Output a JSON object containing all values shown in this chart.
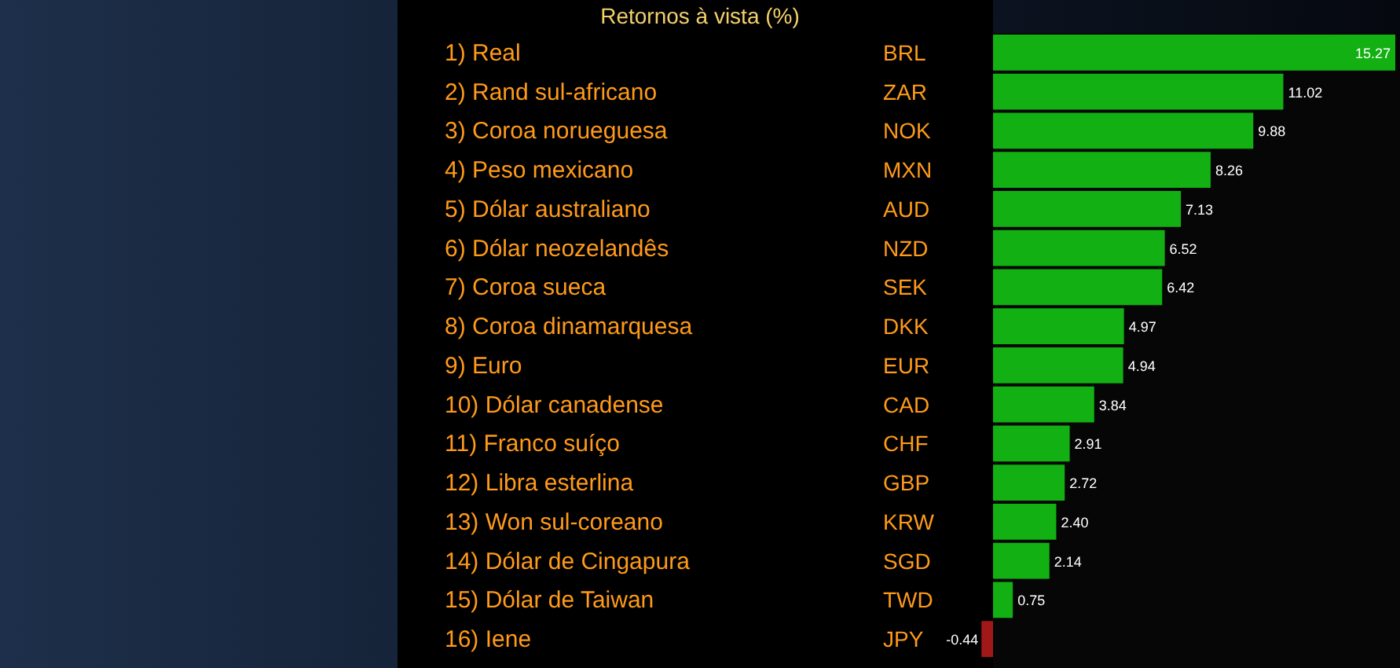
{
  "chart_data": {
    "type": "bar",
    "orientation": "horizontal",
    "title": "Retornos à vista (%)",
    "categories": [
      "1) Real",
      "2) Rand sul-africano",
      "3) Coroa norueguesa",
      "4) Peso mexicano",
      "5) Dólar australiano",
      "6) Dólar neozelandês",
      "7) Coroa sueca",
      "8) Coroa dinamarquesa",
      "9) Euro",
      "10) Dólar canadense",
      "11) Franco suíço",
      "12) Libra esterlina",
      "13) Won sul-coreano",
      "14) Dólar de Cingapura",
      "15) Dólar de Taiwan",
      "16) Iene"
    ],
    "values": [
      15.27,
      11.02,
      9.88,
      8.26,
      7.13,
      6.52,
      6.42,
      4.97,
      4.94,
      3.84,
      2.91,
      2.72,
      2.4,
      2.14,
      0.75,
      -0.44
    ],
    "colors": [
      "#12b012",
      "#12b012",
      "#12b012",
      "#12b012",
      "#12b012",
      "#12b012",
      "#12b012",
      "#12b012",
      "#12b012",
      "#12b012",
      "#12b012",
      "#12b012",
      "#12b012",
      "#12b012",
      "#12b012",
      "#a01818"
    ],
    "value_labels": [
      "15.27",
      "11.02",
      "9.88",
      "8.26",
      "7.13",
      "6.52",
      "6.42",
      "4.97",
      "4.94",
      "3.84",
      "2.91",
      "2.72",
      "2.40",
      "2.14",
      "0.75",
      "-0.44"
    ],
    "annotations": [
      "BRL",
      "ZAR",
      "NOK",
      "MXN",
      "AUD",
      "NZD",
      "SEK",
      "DKK",
      "EUR",
      "CAD",
      "CHF",
      "GBP",
      "KRW",
      "SGD",
      "TWD",
      "JPY"
    ]
  }
}
